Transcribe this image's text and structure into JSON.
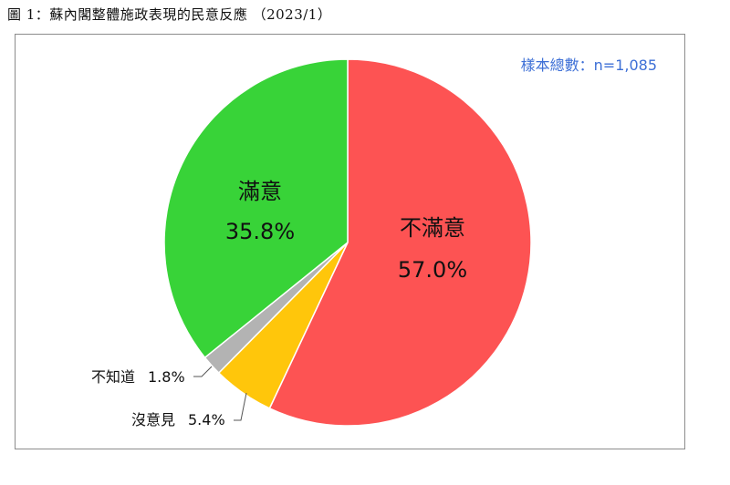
{
  "figure": {
    "title": "圖 1：蘇內閣整體施政表現的民意反應 （2023/1）",
    "sample_text": "樣本總數：n=1,085"
  },
  "chart_data": {
    "type": "pie",
    "title": "蘇內閣整體施政表現的民意反應",
    "slices": [
      {
        "label": "不滿意",
        "value": 57.0,
        "value_text": "57.0%",
        "color": "#fd5353"
      },
      {
        "label": "沒意見",
        "value": 5.4,
        "value_text": "5.4%",
        "color": "#ffc60b"
      },
      {
        "label": "不知道",
        "value": 1.8,
        "value_text": "1.8%",
        "color": "#b3b3b3"
      },
      {
        "label": "滿意",
        "value": 35.8,
        "value_text": "35.8%",
        "color": "#38d338"
      }
    ],
    "start_angle": "12 o'clock",
    "direction": "clockwise"
  }
}
